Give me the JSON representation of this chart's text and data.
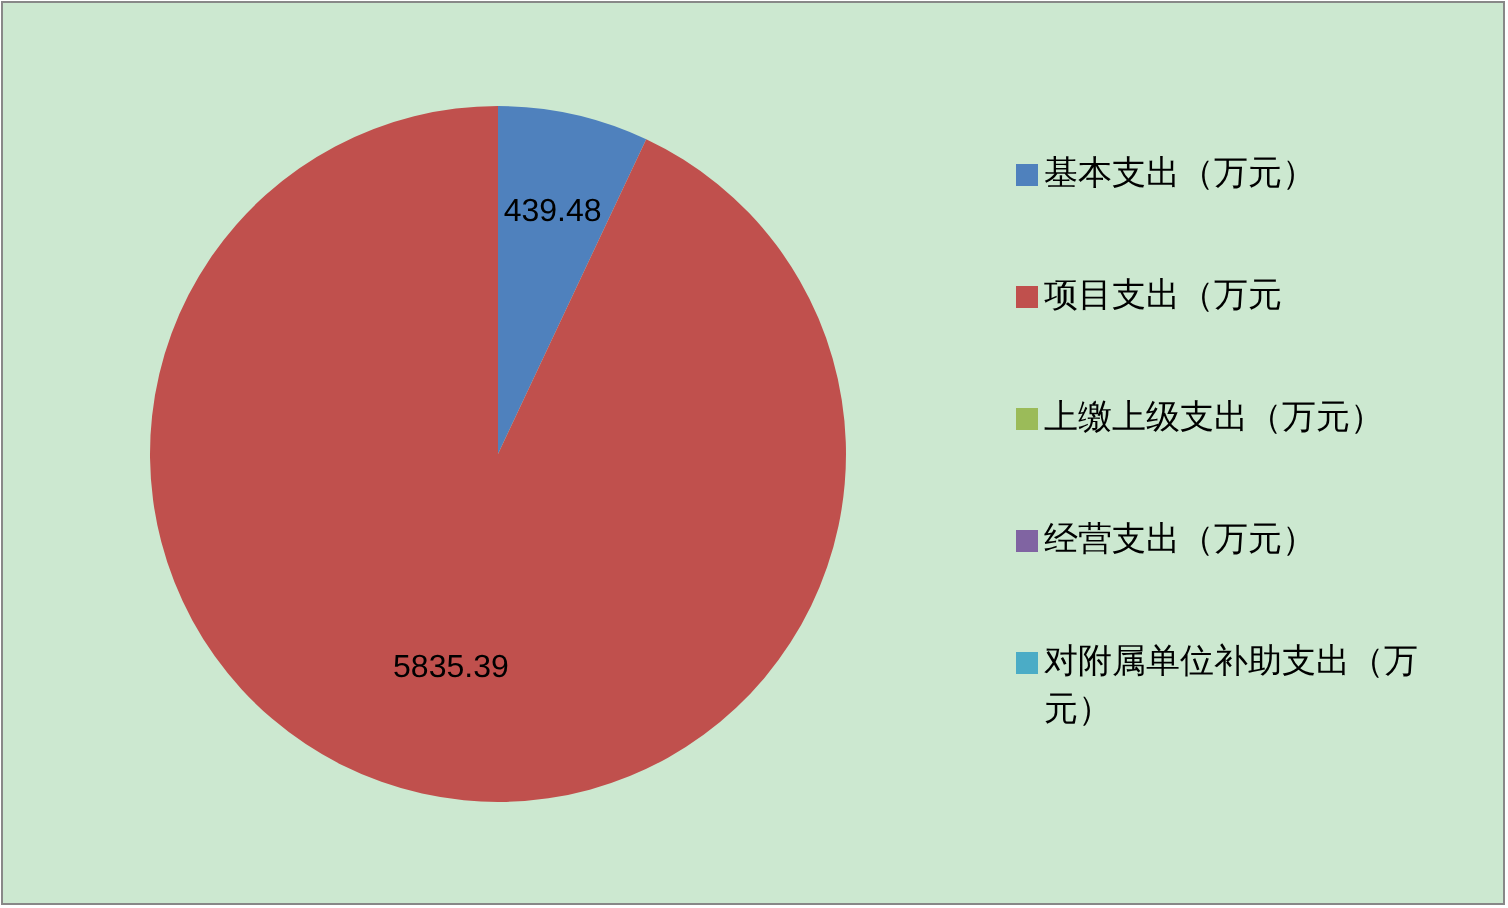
{
  "chart_data": {
    "type": "pie",
    "categories": [
      "基本支出（万元）",
      "项目支出（万元",
      "上缴上级支出（万元）",
      "经营支出（万元）",
      "对附属单位补助支出（万元）"
    ],
    "values": [
      439.48,
      5835.39,
      0,
      0,
      0
    ],
    "colors": [
      "#4f81bd",
      "#c0504d",
      "#9bbb59",
      "#8064a2",
      "#4bacc6"
    ],
    "data_labels": true,
    "legend": "right"
  }
}
